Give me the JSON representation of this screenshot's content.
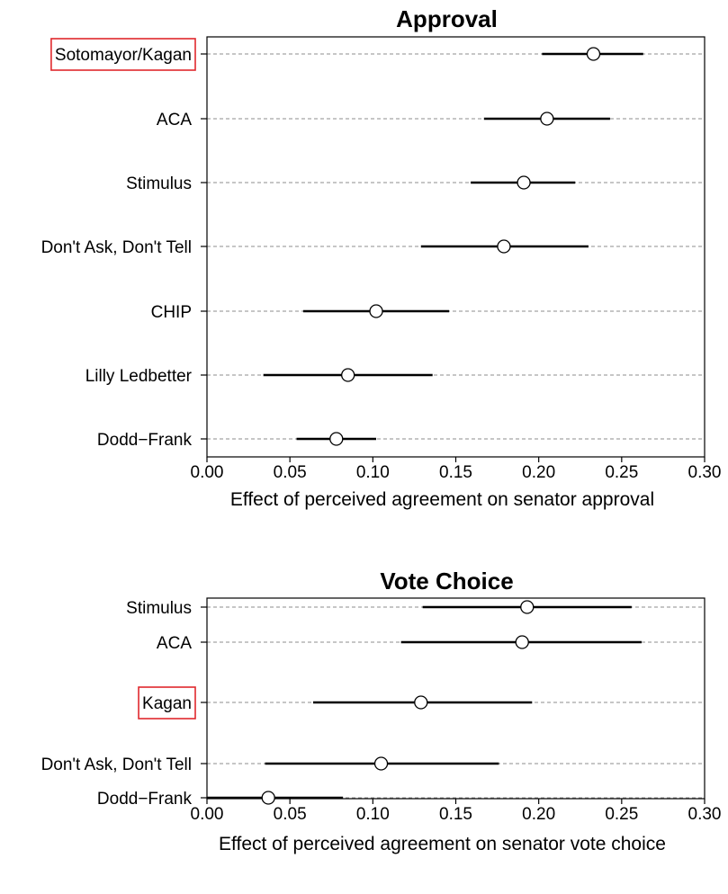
{
  "chart_data": [
    {
      "type": "dot-errorbar",
      "title": "Approval",
      "xlabel": "Effect of perceived agreement on senator approval",
      "ylabel": "",
      "xlim": [
        0.0,
        0.3
      ],
      "xticks": [
        "0.00",
        "0.05",
        "0.10",
        "0.15",
        "0.20",
        "0.25",
        "0.30"
      ],
      "grid": "horizontal dashed",
      "categories": [
        "Sotomayor/Kagan",
        "ACA",
        "Stimulus",
        "Don't Ask, Don't Tell",
        "CHIP",
        "Lilly Ledbetter",
        "Dodd−Frank"
      ],
      "estimates": [
        0.233,
        0.205,
        0.191,
        0.179,
        0.102,
        0.085,
        0.078
      ],
      "ci_low": [
        0.202,
        0.167,
        0.159,
        0.129,
        0.058,
        0.034,
        0.054
      ],
      "ci_high": [
        0.263,
        0.243,
        0.222,
        0.23,
        0.146,
        0.136,
        0.102
      ],
      "highlighted": [
        "Sotomayor/Kagan"
      ]
    },
    {
      "type": "dot-errorbar",
      "title": "Vote Choice",
      "xlabel": "Effect of perceived agreement on senator vote choice",
      "ylabel": "",
      "xlim": [
        0.0,
        0.3
      ],
      "xticks": [
        "0.00",
        "0.05",
        "0.10",
        "0.15",
        "0.20",
        "0.25",
        "0.30"
      ],
      "grid": "horizontal dashed",
      "categories": [
        "Stimulus",
        "ACA",
        "Kagan",
        "Don't Ask, Don't Tell",
        "Dodd−Frank"
      ],
      "estimates": [
        0.193,
        0.19,
        0.129,
        0.105,
        0.037
      ],
      "ci_low": [
        0.13,
        0.117,
        0.064,
        0.035,
        0.0
      ],
      "ci_high": [
        0.256,
        0.262,
        0.196,
        0.176,
        0.082
      ],
      "highlighted": [
        "Kagan"
      ]
    }
  ],
  "colors": {
    "highlight_box": "#e0282d",
    "grid": "#8c8c8c",
    "marker_fill": "#ffffff",
    "ink": "#000000"
  }
}
